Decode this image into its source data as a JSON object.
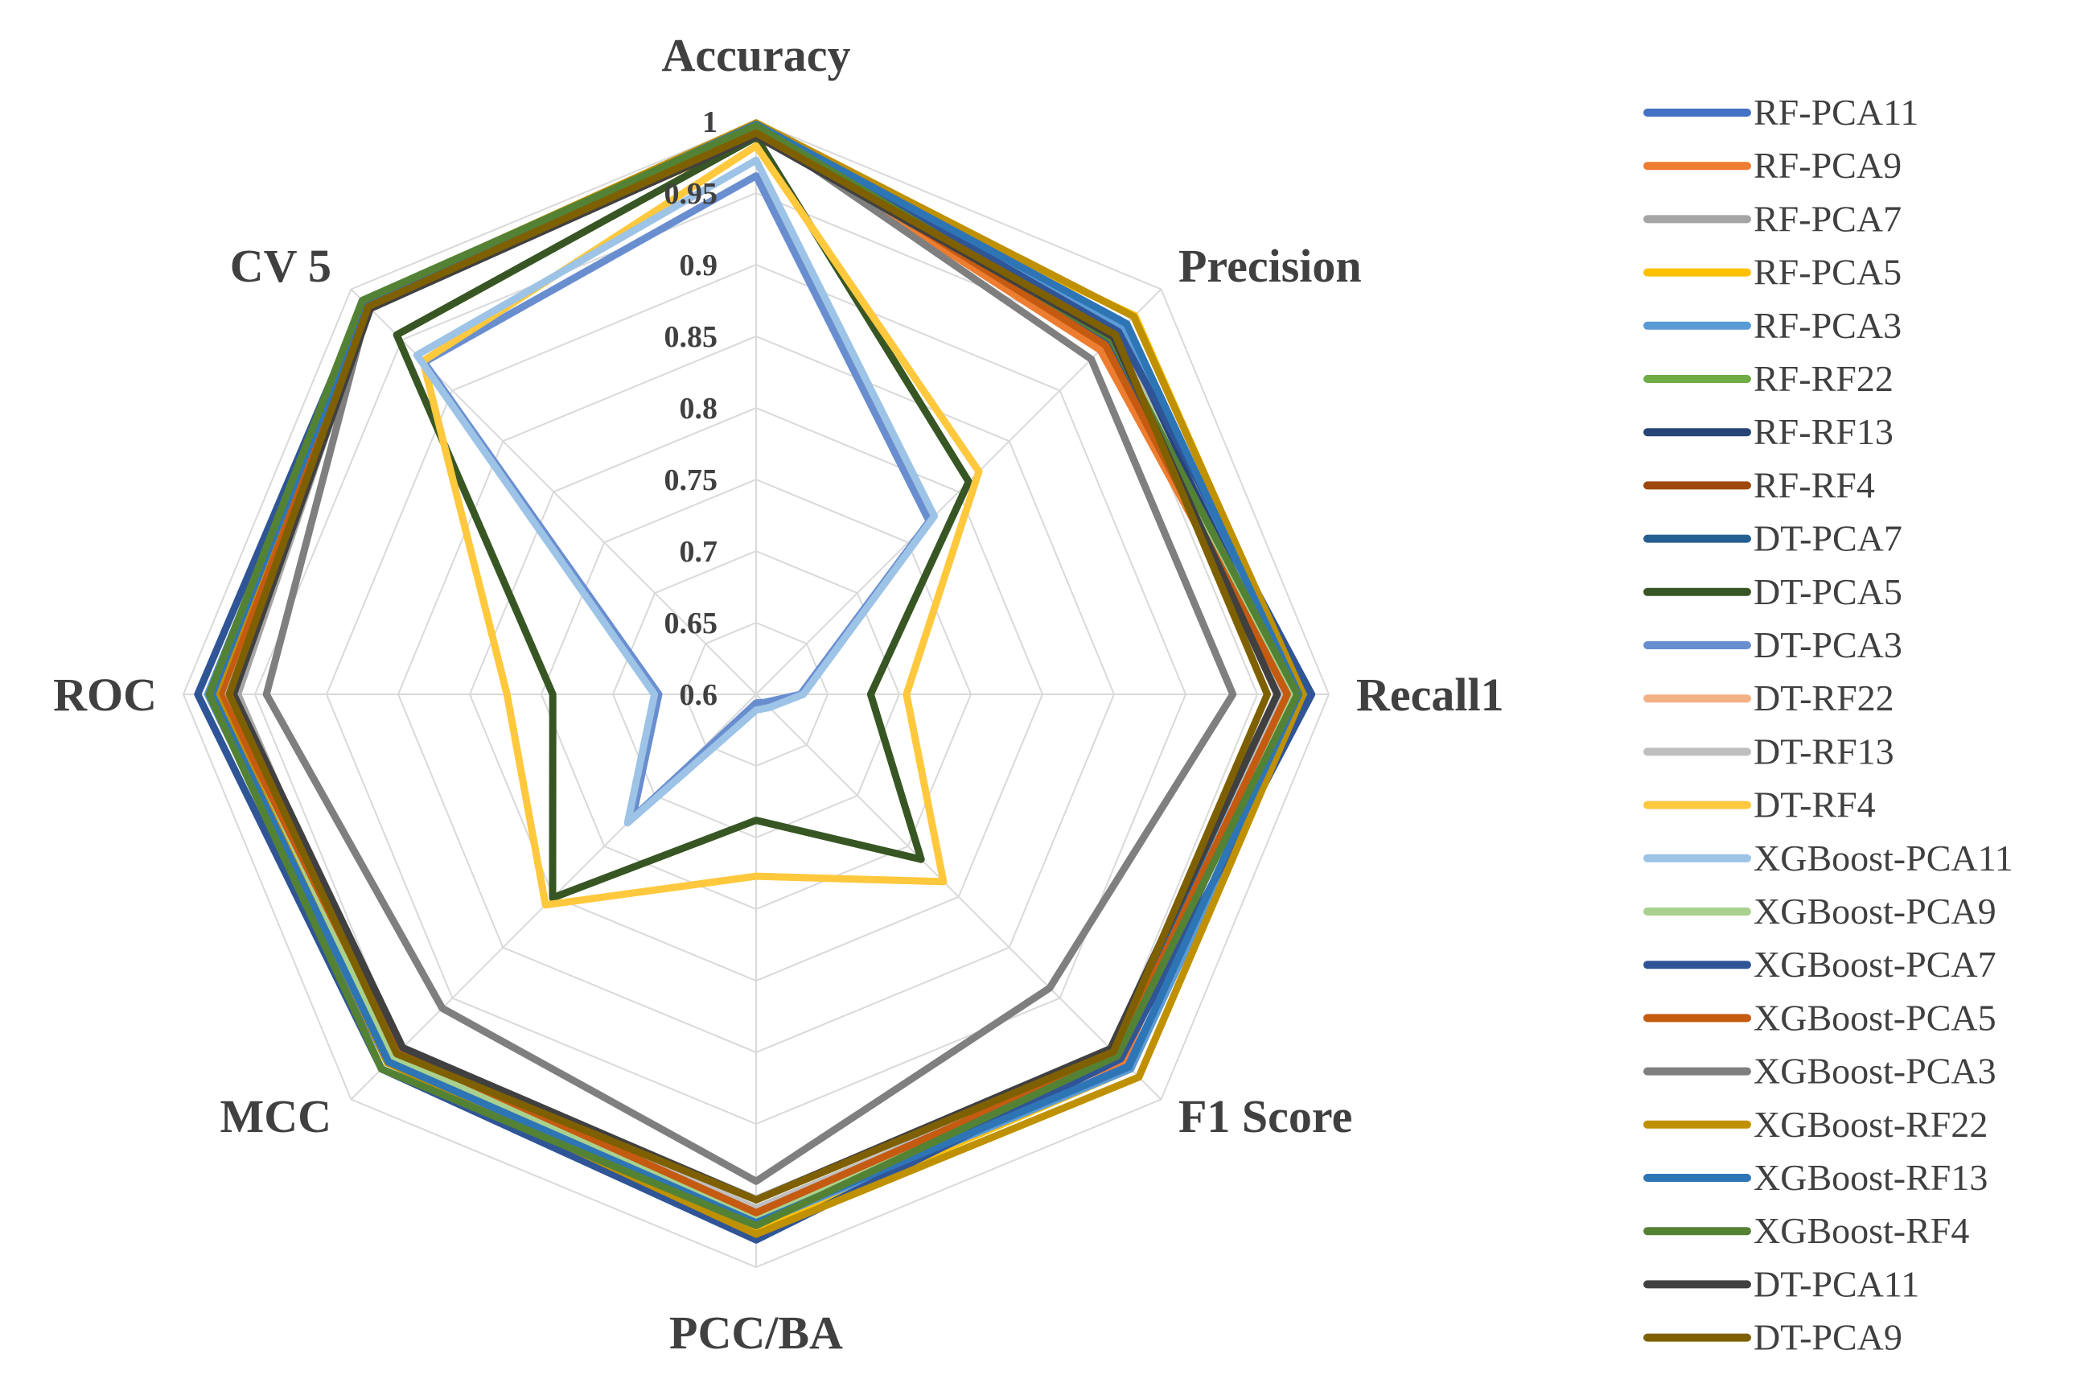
{
  "chart_data": {
    "type": "radar",
    "axes": [
      "Accuracy",
      "Precision",
      "Recall1",
      "F1 Score",
      "PCC/BA",
      "MCC",
      "ROC",
      "CV 5"
    ],
    "ticks": [
      "0.6",
      "0.65",
      "0.7",
      "0.75",
      "0.8",
      "0.85",
      "0.9",
      "0.95",
      "1"
    ],
    "rlim": [
      0.6,
      1.0
    ],
    "legend_position": "right",
    "grid": true,
    "series": [
      {
        "name": "RF-PCA11",
        "color": "#4472C4",
        "values": [
          0.998,
          0.957,
          0.984,
          0.967,
          0.974,
          0.964,
          0.983,
          0.985
        ]
      },
      {
        "name": "RF-PCA9",
        "color": "#ED7D31",
        "values": [
          0.995,
          0.94,
          0.972,
          0.962,
          0.962,
          0.955,
          0.97,
          0.983
        ]
      },
      {
        "name": "RF-PCA7",
        "color": "#A5A5A5",
        "values": [
          0.993,
          0.963,
          0.968,
          0.959,
          0.963,
          0.957,
          0.962,
          0.982
        ]
      },
      {
        "name": "RF-PCA5",
        "color": "#FFC000",
        "values": [
          0.989,
          0.974,
          0.981,
          0.97,
          0.974,
          0.961,
          0.974,
          0.984
        ]
      },
      {
        "name": "RF-PCA3",
        "color": "#5B9BD5",
        "values": [
          0.999,
          0.963,
          0.983,
          0.97,
          0.97,
          0.962,
          0.983,
          0.985
        ]
      },
      {
        "name": "RF-RF22",
        "color": "#70AD47",
        "values": [
          0.996,
          0.955,
          0.974,
          0.958,
          0.965,
          0.96,
          0.975,
          0.987
        ]
      },
      {
        "name": "RF-RF13",
        "color": "#264478",
        "values": [
          0.997,
          0.957,
          0.975,
          0.96,
          0.968,
          0.962,
          0.977,
          0.986
        ]
      },
      {
        "name": "RF-RF4",
        "color": "#9E480E",
        "values": [
          0.996,
          0.948,
          0.972,
          0.957,
          0.962,
          0.958,
          0.973,
          0.985
        ]
      },
      {
        "name": "DT-PCA7",
        "color": "#255E91",
        "values": [
          0.992,
          0.95,
          0.968,
          0.955,
          0.961,
          0.955,
          0.972,
          0.983
        ]
      },
      {
        "name": "DT-PCA5",
        "color": "#375623",
        "values": [
          0.989,
          0.81,
          0.68,
          0.763,
          0.688,
          0.801,
          0.742,
          0.955
        ]
      },
      {
        "name": "DT-PCA3",
        "color": "#698ED0",
        "values": [
          0.962,
          0.771,
          0.631,
          0.608,
          0.606,
          0.722,
          0.668,
          0.928
        ]
      },
      {
        "name": "DT-RF22",
        "color": "#F4B183",
        "values": [
          0.996,
          0.952,
          0.97,
          0.957,
          0.96,
          0.956,
          0.972,
          0.985
        ]
      },
      {
        "name": "DT-RF13",
        "color": "#BFBFBF",
        "values": [
          0.995,
          0.955,
          0.969,
          0.958,
          0.959,
          0.955,
          0.971,
          0.984
        ]
      },
      {
        "name": "DT-RF4",
        "color": "#FFC83D",
        "values": [
          0.983,
          0.82,
          0.705,
          0.785,
          0.727,
          0.808,
          0.774,
          0.929
        ]
      },
      {
        "name": "XGBoost-PCA11",
        "color": "#9DC3E6",
        "values": [
          0.973,
          0.776,
          0.633,
          0.613,
          0.611,
          0.727,
          0.671,
          0.935
        ]
      },
      {
        "name": "XGBoost-PCA9",
        "color": "#A9D18E",
        "values": [
          0.996,
          0.953,
          0.973,
          0.959,
          0.964,
          0.958,
          0.974,
          0.986
        ]
      },
      {
        "name": "XGBoost-PCA7",
        "color": "#2F5597",
        "values": [
          0.998,
          0.958,
          0.988,
          0.96,
          0.981,
          0.97,
          0.99,
          0.987
        ]
      },
      {
        "name": "XGBoost-PCA5",
        "color": "#C55A11",
        "values": [
          0.997,
          0.945,
          0.971,
          0.956,
          0.962,
          0.953,
          0.974,
          0.984
        ]
      },
      {
        "name": "XGBoost-PCA3",
        "color": "#7F7F7F",
        "values": [
          0.995,
          0.931,
          0.933,
          0.89,
          0.94,
          0.91,
          0.942,
          0.983
        ]
      },
      {
        "name": "XGBoost-RF22",
        "color": "#BF9000",
        "values": [
          0.999,
          0.973,
          0.982,
          0.978,
          0.977,
          0.964,
          0.978,
          0.988
        ]
      },
      {
        "name": "XGBoost-RF13",
        "color": "#2E75B6",
        "values": [
          0.998,
          0.966,
          0.979,
          0.968,
          0.969,
          0.963,
          0.98,
          0.986
        ]
      },
      {
        "name": "XGBoost-RF4",
        "color": "#548235",
        "values": [
          0.997,
          0.951,
          0.978,
          0.957,
          0.971,
          0.97,
          0.982,
          0.989
        ]
      },
      {
        "name": "DT-PCA11",
        "color": "#404040",
        "values": [
          0.99,
          0.953,
          0.964,
          0.95,
          0.953,
          0.949,
          0.965,
          0.981
        ]
      },
      {
        "name": "DT-PCA9",
        "color": "#7F6000",
        "values": [
          0.992,
          0.955,
          0.957,
          0.953,
          0.953,
          0.955,
          0.968,
          0.983
        ]
      }
    ]
  }
}
